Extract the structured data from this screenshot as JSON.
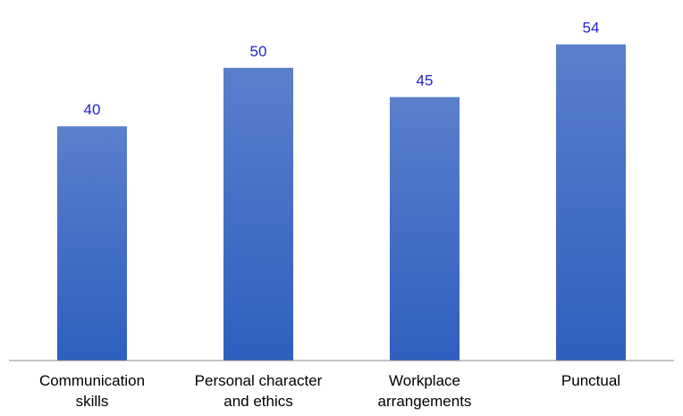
{
  "chart_data": {
    "type": "bar",
    "title": "",
    "xlabel": "",
    "ylabel": "",
    "categories": [
      [
        "Communication",
        "skills"
      ],
      [
        "Personal character",
        "and ethics"
      ],
      [
        "Workplace",
        "arrangements"
      ],
      [
        "Punctual"
      ]
    ],
    "values": [
      40,
      50,
      45,
      54
    ],
    "ylim": [
      0,
      57
    ],
    "grid": false,
    "legend": "none",
    "data_labels": true,
    "colors": {
      "bar_top": "#5a7fcc",
      "bar_bottom": "#2f5fbf",
      "data_label": "#2222cc",
      "axis": "#888888",
      "tick_label": "#000000"
    }
  }
}
